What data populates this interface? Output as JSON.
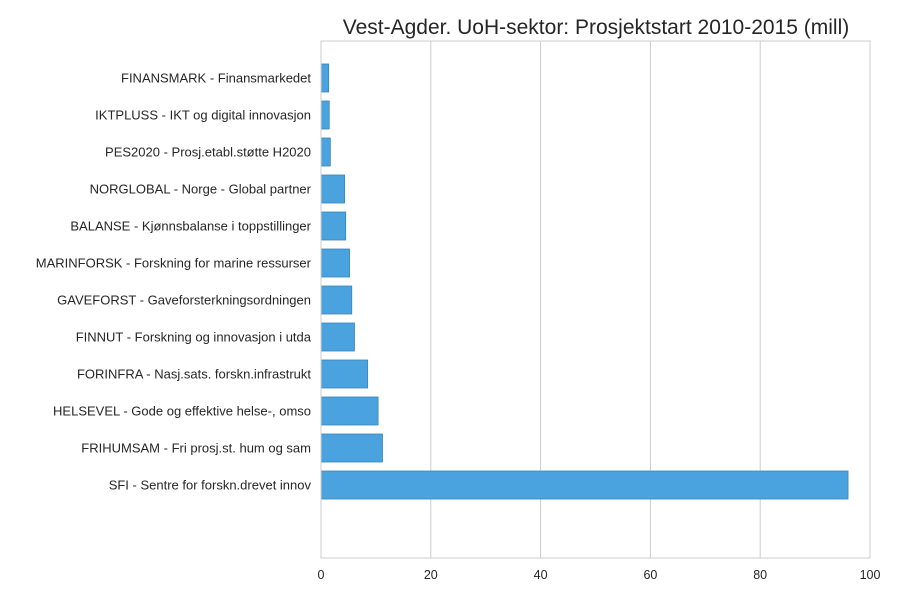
{
  "chart_data": {
    "type": "bar",
    "orientation": "horizontal",
    "title": "Vest-Agder. UoH-sektor: Prosjektstart 2010-2015 (mill)",
    "xlabel": "",
    "ylabel": "",
    "categories": [
      "FINANSMARK - Finansmarkedet",
      "IKTPLUSS - IKT og digital innovasjon",
      "PES2020 - Prosj.etabl.støtte H2020",
      "NORGLOBAL - Norge - Global partner",
      "BALANSE - Kjønnsbalanse i toppstillinger",
      "MARINFORSK - Forskning for marine ressurser",
      "GAVEFORST - Gaveforsterkningsordningen",
      "FINNUT - Forskning og innovasjon i utda",
      "FORINFRA - Nasj.sats. forskn.infrastrukt",
      "HELSEVEL - Gode og effektive helse-, omso",
      "FRIHUMSAM - Fri prosj.st. hum og sam",
      "SFI - Sentre for forskn.drevet innov"
    ],
    "values": [
      1.4,
      1.5,
      1.7,
      4.3,
      4.5,
      5.2,
      5.6,
      6.1,
      8.5,
      10.4,
      11.2,
      96.0
    ],
    "xlim": [
      0,
      100
    ],
    "xticks": [
      0,
      20,
      40,
      60,
      80,
      100
    ],
    "grid": "vertical",
    "legend": "none",
    "bar_color": "#4aa3df",
    "bar_edge_color": "#3a84b6"
  }
}
